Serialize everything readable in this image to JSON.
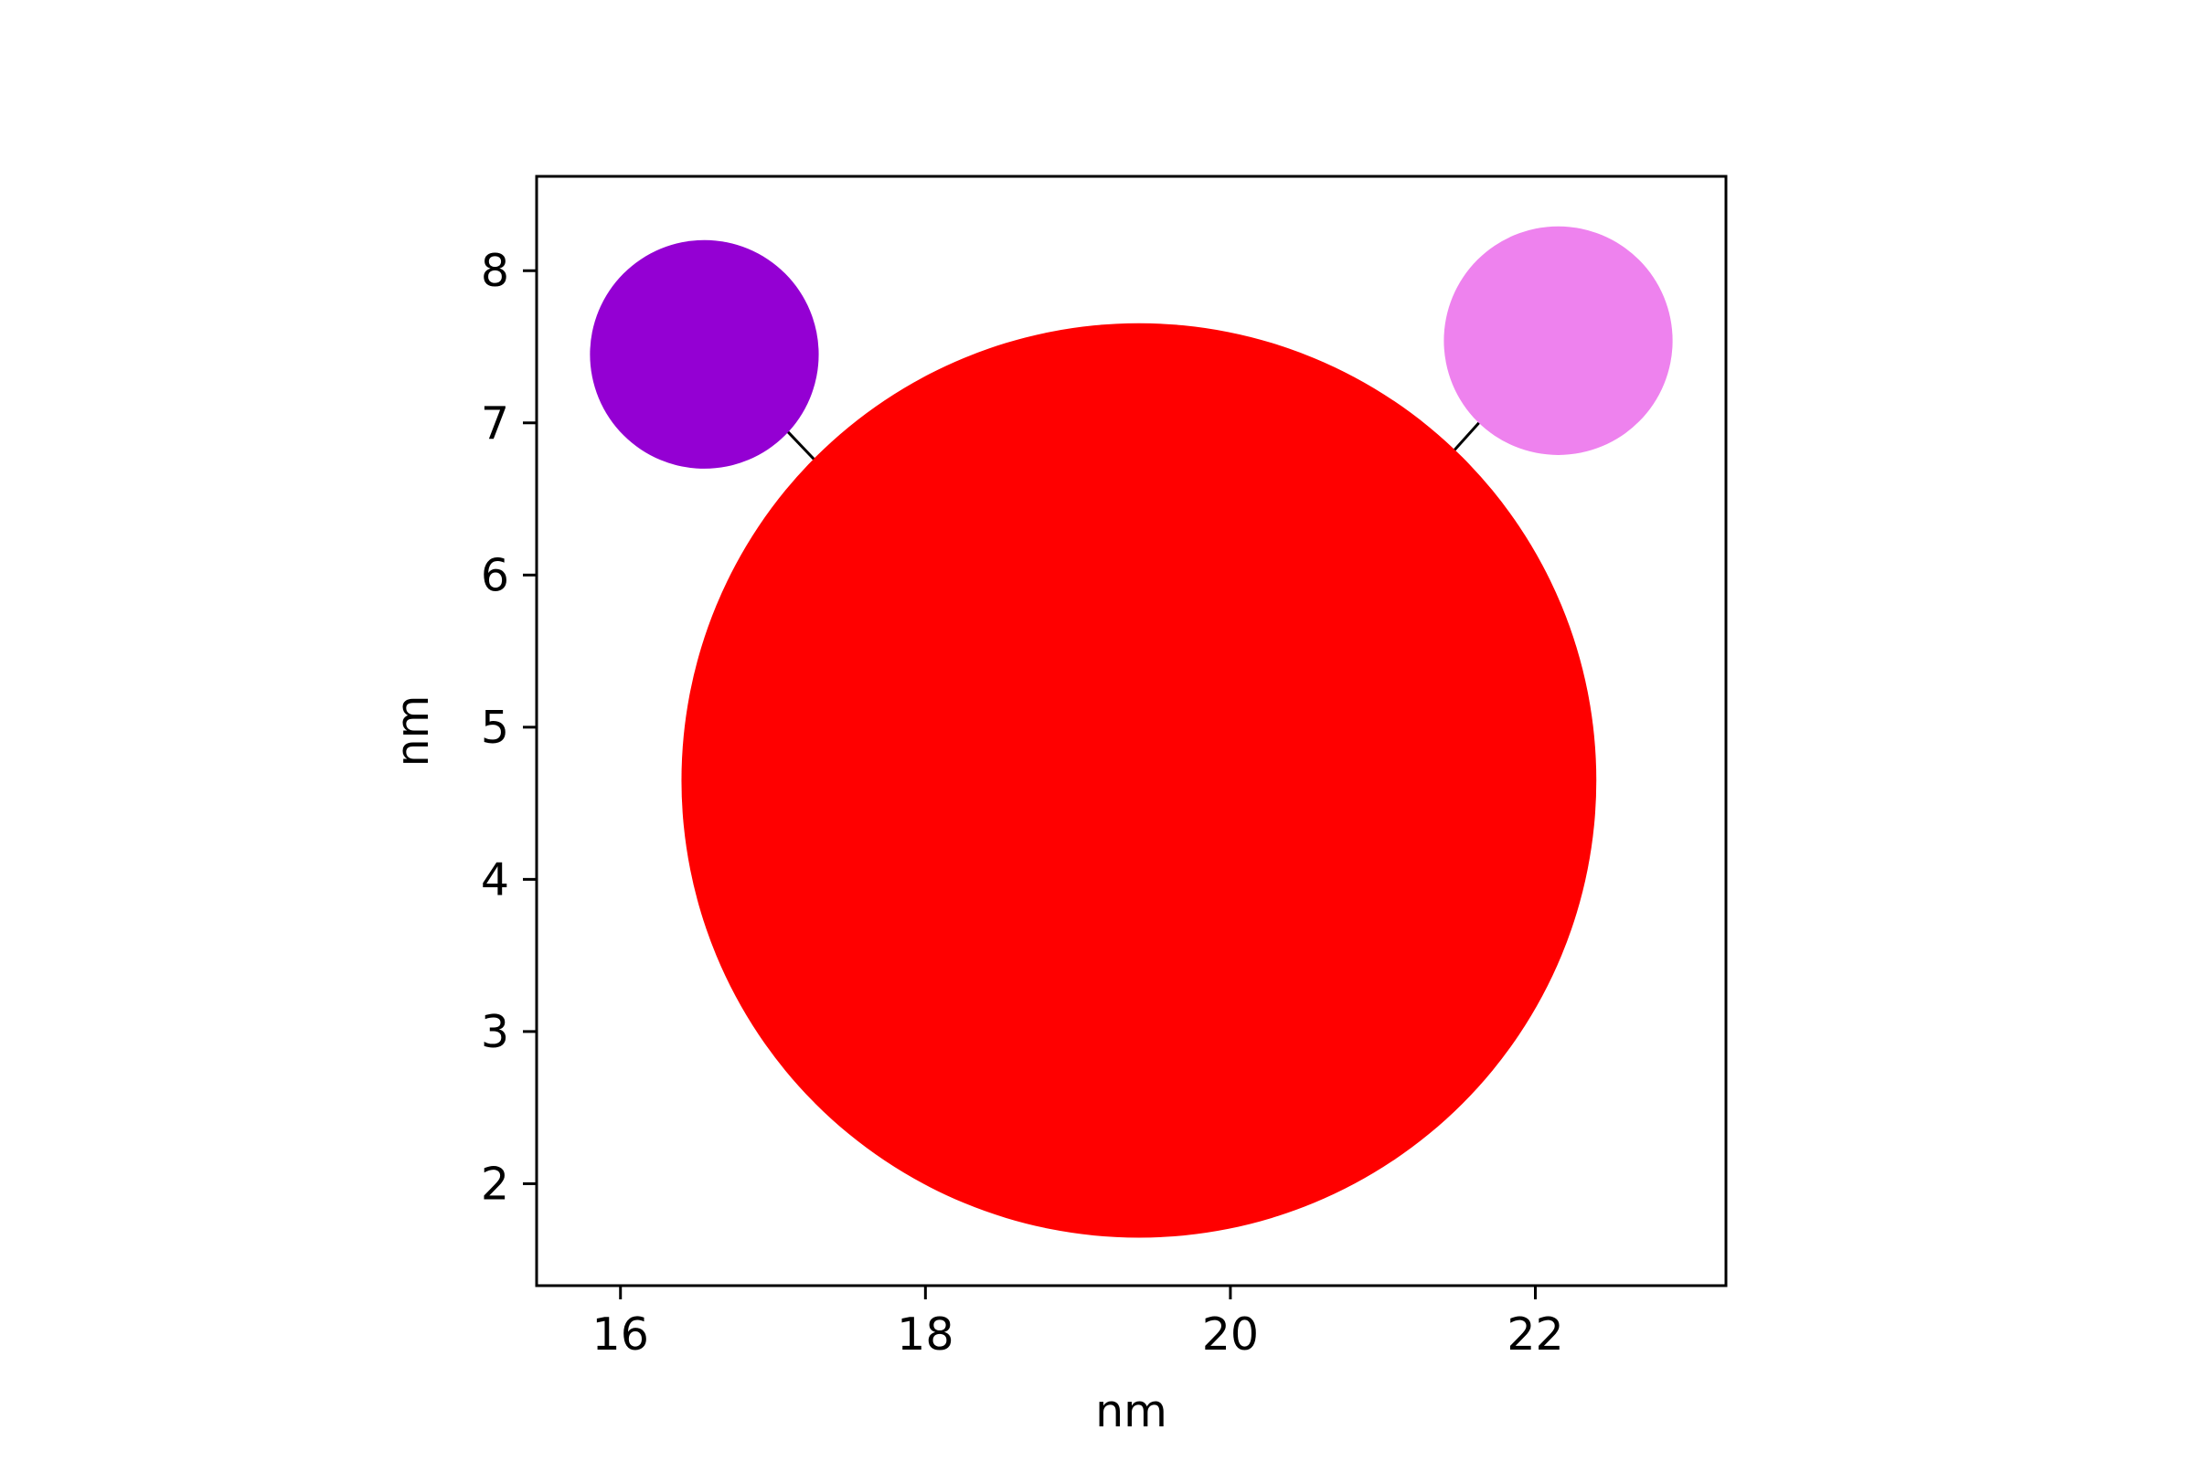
{
  "chart_data": {
    "type": "scatter",
    "title": "",
    "xlabel": "nm",
    "ylabel": "nm",
    "xlim": [
      15.45,
      23.25
    ],
    "ylim": [
      1.33,
      8.62
    ],
    "grid": false,
    "legend": "none",
    "x_ticks": [
      {
        "value": 16,
        "label": "16"
      },
      {
        "value": 18,
        "label": "18"
      },
      {
        "value": 20,
        "label": "20"
      },
      {
        "value": 22,
        "label": "22"
      }
    ],
    "y_ticks": [
      {
        "value": 2,
        "label": "2"
      },
      {
        "value": 3,
        "label": "3"
      },
      {
        "value": 4,
        "label": "4"
      },
      {
        "value": 5,
        "label": "5"
      },
      {
        "value": 6,
        "label": "6"
      },
      {
        "value": 7,
        "label": "7"
      },
      {
        "value": 8,
        "label": "8"
      }
    ],
    "circles": [
      {
        "id": "purple-particle",
        "cx": 16.55,
        "cy": 7.45,
        "r": 0.75,
        "color": "#9400d3"
      },
      {
        "id": "violet-particle",
        "cx": 22.15,
        "cy": 7.54,
        "r": 0.75,
        "color": "#ee82ee"
      },
      {
        "id": "red-particle",
        "cx": 19.4,
        "cy": 4.65,
        "r": 3.0,
        "color": "#ff0000"
      }
    ],
    "links": [
      {
        "id": "link-purple-red",
        "x1": 17.08,
        "y1": 6.96,
        "x2": 17.27,
        "y2": 6.76,
        "color": "#000000"
      },
      {
        "id": "link-violet-red",
        "x1": 21.63,
        "y1": 7.0,
        "x2": 21.45,
        "y2": 6.8,
        "color": "#000000"
      }
    ]
  }
}
